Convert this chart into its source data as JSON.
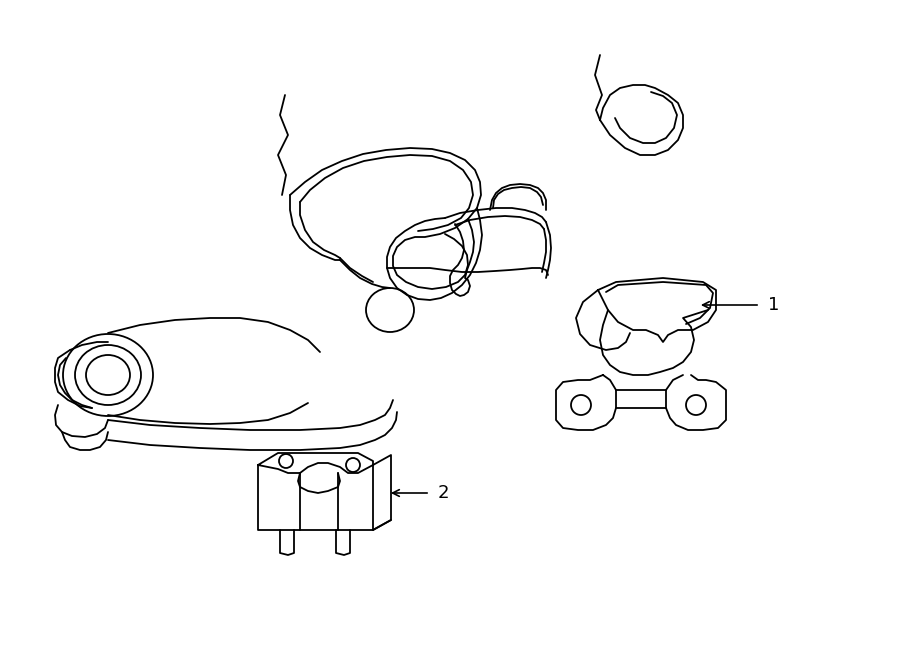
{
  "background_color": "#ffffff",
  "line_color": "#000000",
  "line_width": 1.3,
  "figure_width": 9.0,
  "figure_height": 6.61,
  "dpi": 100
}
